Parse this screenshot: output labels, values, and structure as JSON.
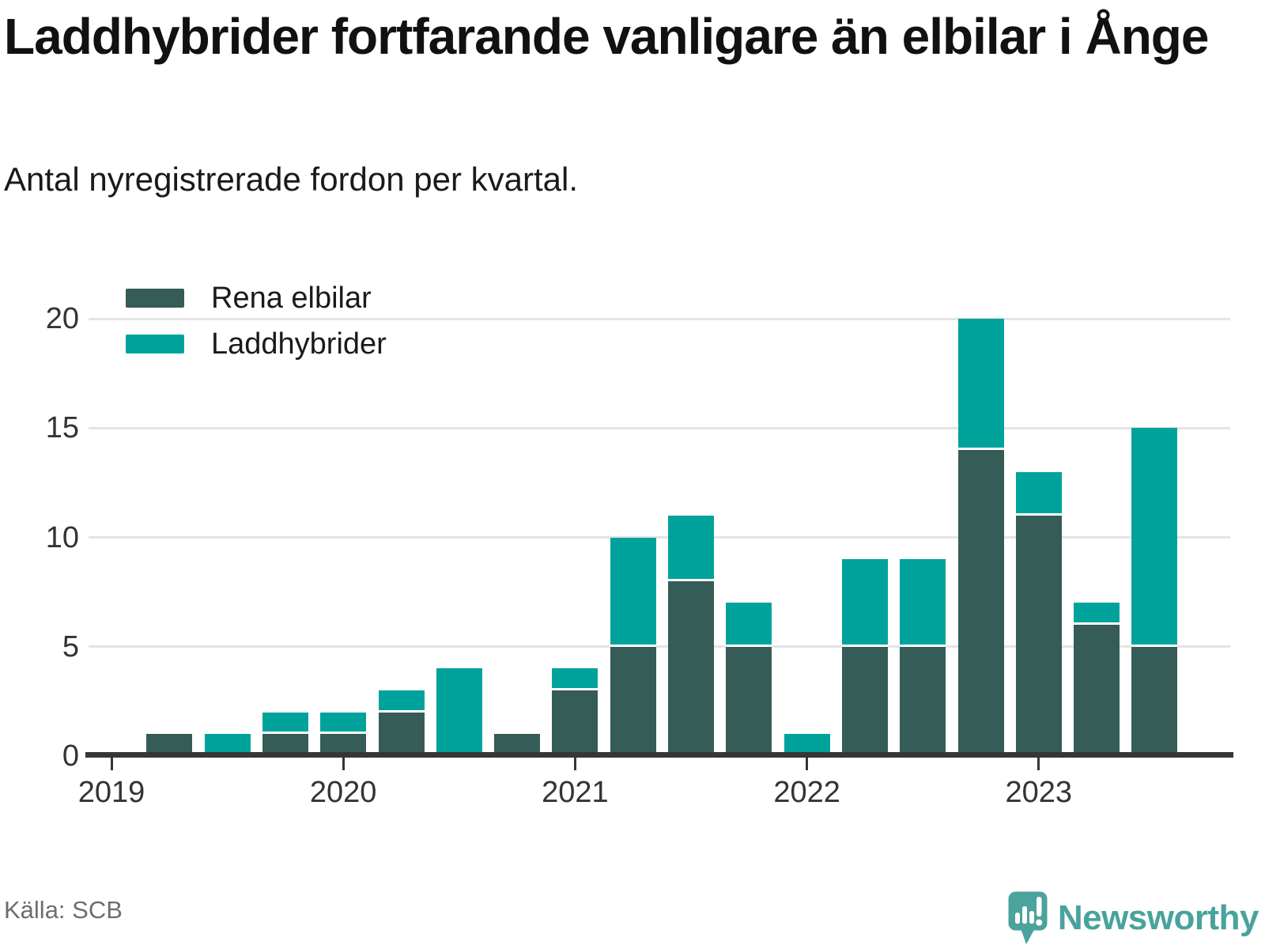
{
  "header": {
    "title": "Laddhybrider fortfarande vanligare än elbilar i Ånge",
    "subtitle": "Antal nyregistrerade fordon per kvartal."
  },
  "footer": {
    "source": "Källa: SCB",
    "brand": "Newsworthy",
    "brand_color": "#48a39c"
  },
  "chart_data": {
    "type": "bar",
    "stacked": true,
    "title": "Laddhybrider fortfarande vanligare än elbilar i Ånge",
    "subtitle": "Antal nyregistrerade fordon per kvartal.",
    "categories": [
      "2019 Q1",
      "2019 Q2",
      "2019 Q3",
      "2019 Q4",
      "2020 Q1",
      "2020 Q2",
      "2020 Q3",
      "2020 Q4",
      "2021 Q1",
      "2021 Q2",
      "2021 Q3",
      "2021 Q4",
      "2022 Q1",
      "2022 Q2",
      "2022 Q3",
      "2022 Q4",
      "2023 Q1",
      "2023 Q2",
      "2023 Q3"
    ],
    "series": [
      {
        "name": "Rena elbilar",
        "color": "#355c57",
        "values": [
          0,
          1,
          0,
          1,
          1,
          2,
          0,
          1,
          3,
          5,
          8,
          5,
          0,
          5,
          5,
          14,
          11,
          6,
          5
        ]
      },
      {
        "name": "Laddhybrider",
        "color": "#00a39b",
        "values": [
          0,
          0,
          1,
          1,
          1,
          1,
          4,
          0,
          1,
          5,
          3,
          2,
          1,
          4,
          4,
          6,
          2,
          1,
          10
        ]
      }
    ],
    "ylabel": "",
    "xlabel": "",
    "ylim": [
      0,
      22
    ],
    "y_ticks": [
      0,
      5,
      10,
      15,
      20
    ],
    "x_year_ticks": [
      {
        "label": "2019",
        "index": 0
      },
      {
        "label": "2020",
        "index": 4
      },
      {
        "label": "2021",
        "index": 8
      },
      {
        "label": "2022",
        "index": 12
      },
      {
        "label": "2023",
        "index": 16
      }
    ],
    "grid": "horizontal",
    "legend_position": "top-left",
    "source": "Källa: SCB"
  }
}
